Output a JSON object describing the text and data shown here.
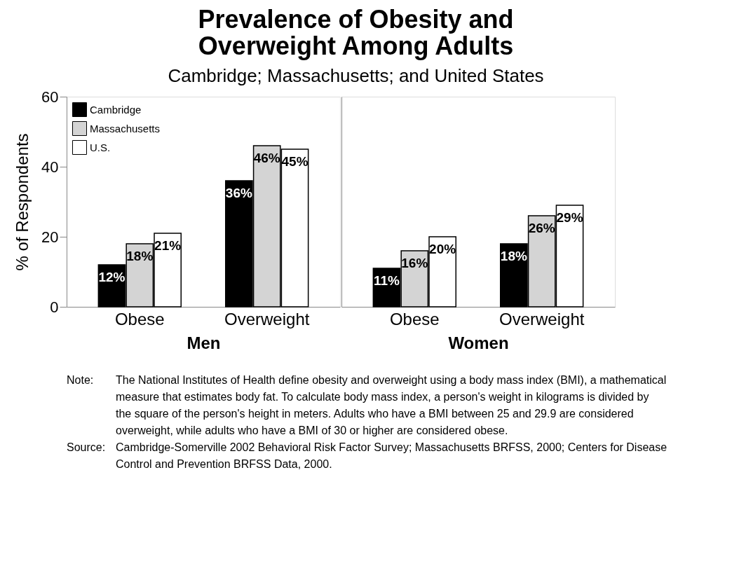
{
  "chart_data": [
    {
      "type": "bar",
      "title": "Prevalence of Obesity and Overweight Among Adults",
      "subtitle": "Cambridge; Massachusetts; and United States",
      "xlabel": "Men",
      "ylabel": "% of Respondents",
      "categories": [
        "Obese",
        "Overweight"
      ],
      "ylim": [
        0,
        60
      ],
      "yticks": [
        0,
        20,
        40,
        60
      ],
      "legend": "top left",
      "grid": false,
      "series": [
        {
          "name": "Cambridge",
          "color": "#000000",
          "values": [
            12,
            36
          ],
          "value_labels": [
            "12%",
            "36%"
          ]
        },
        {
          "name": "Massachusetts",
          "color": "#d4d4d4",
          "values": [
            18,
            46
          ],
          "value_labels": [
            "18%",
            "46%"
          ]
        },
        {
          "name": "U.S.",
          "color": "#ffffff",
          "values": [
            21,
            45
          ],
          "value_labels": [
            "21%",
            "45%"
          ]
        }
      ]
    },
    {
      "type": "bar",
      "xlabel": "Women",
      "categories": [
        "Obese",
        "Overweight"
      ],
      "ylim": [
        0,
        60
      ],
      "yticks": [
        0,
        20,
        40,
        60
      ],
      "tick_labels": "x",
      "legend": false,
      "grid": false,
      "series": [
        {
          "name": "Cambridge",
          "color": "#000000",
          "values": [
            11,
            18
          ],
          "value_labels": [
            "11%",
            "18%"
          ]
        },
        {
          "name": "Massachusetts",
          "color": "#d4d4d4",
          "values": [
            16,
            26
          ],
          "value_labels": [
            "16%",
            "26%"
          ]
        },
        {
          "name": "U.S.",
          "color": "#ffffff",
          "values": [
            20,
            29
          ],
          "value_labels": [
            "20%",
            "29%"
          ]
        }
      ],
      "annotations": [
        "Note:\tThe National Institutes of Health define obesity and overweight using a body mass index (BMI), a mathematical measure that estimates body fat. To calculate body mass index, a person's weight in kilograms is divided by the square of the person's height in meters.  Adults who have a BMI between 25 and 29.9 are considered overweight, while adults who have a BMI of 30 or higher are considered obese.",
        "Source:\tCambridge-Somerville 2002 Behavioral Risk Factor Survey; Massachusetts BRFSS, 2000; Centers for Disease Control and Prevention BRFSS Data, 2000."
      ]
    }
  ]
}
